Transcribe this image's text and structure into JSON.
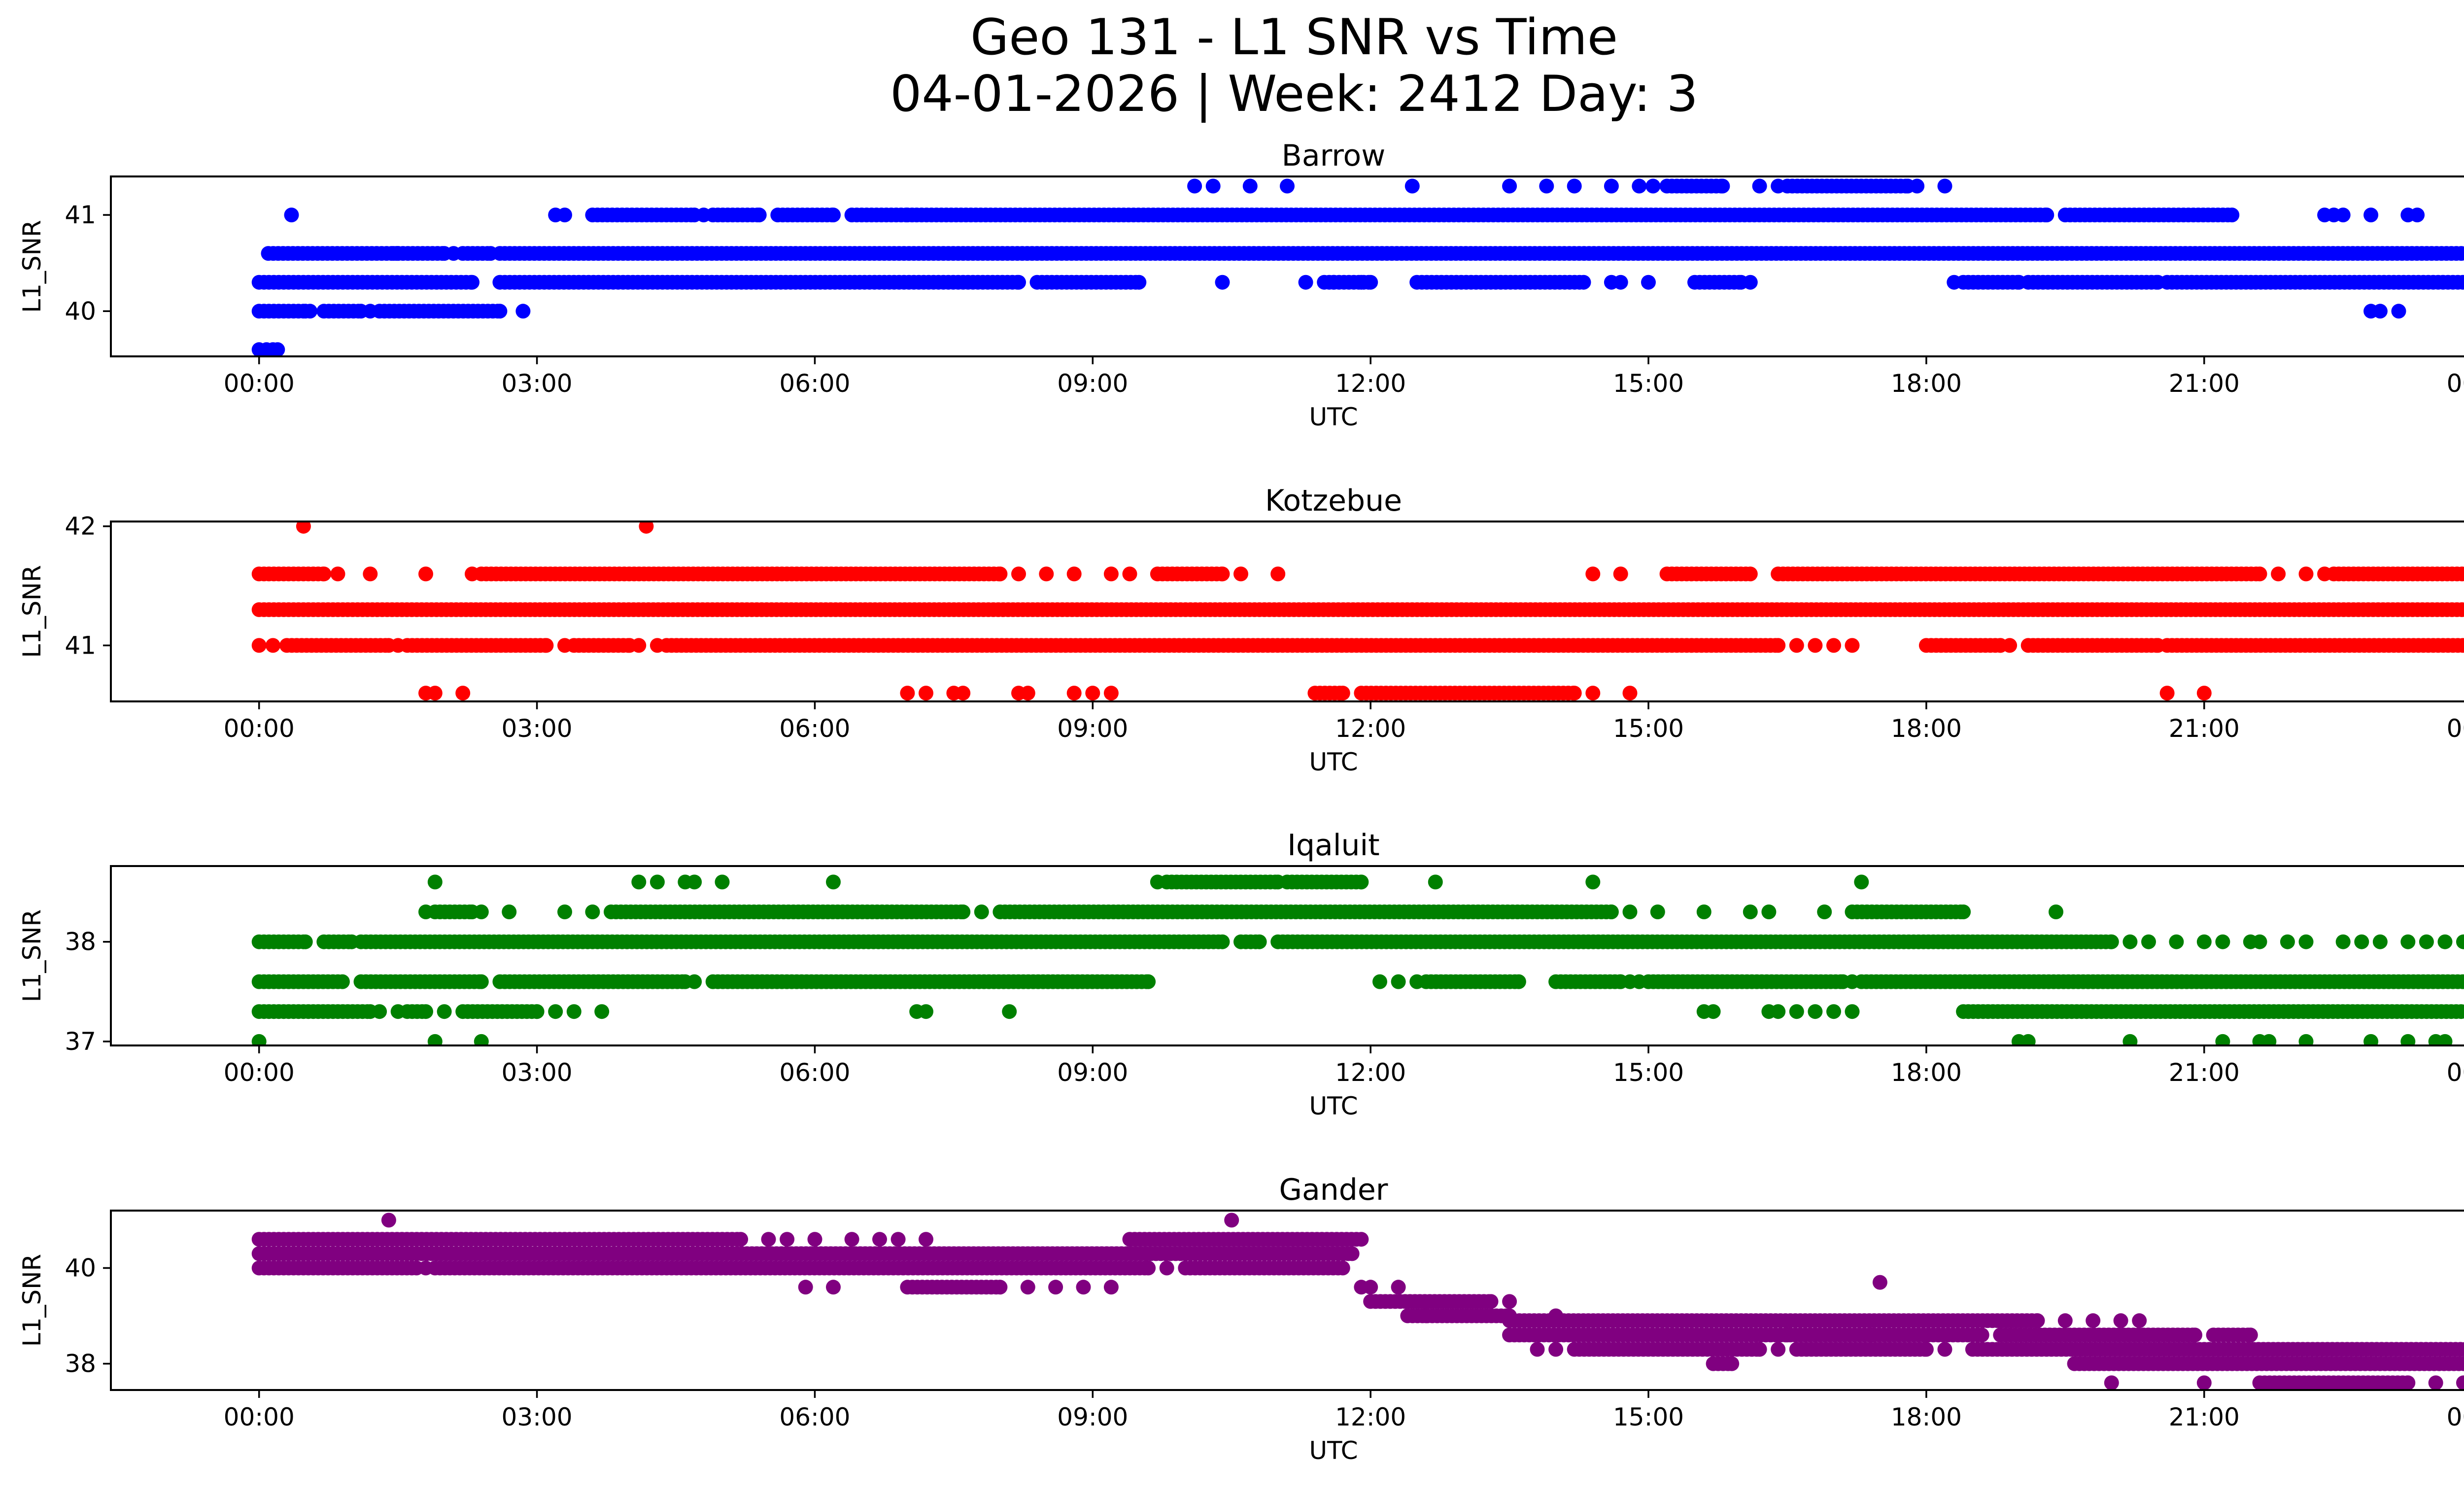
{
  "figure": {
    "title_line1": "Geo 131 - L1 SNR vs Time",
    "title_line2": "04-01-2026 | Week: 2412 Day: 3"
  },
  "chart_data": [
    {
      "type": "scatter",
      "title": "Barrow",
      "color": "#0000ff",
      "xlabel": "UTC",
      "ylabel": "L1_SNR",
      "xlim": [
        -1.6,
        24.8
      ],
      "ylim": [
        39.53,
        41.4
      ],
      "xticks": [
        0,
        3,
        6,
        9,
        12,
        15,
        18,
        21,
        24
      ],
      "xtick_labels": [
        "00:00",
        "03:00",
        "06:00",
        "09:00",
        "12:00",
        "15:00",
        "18:00",
        "21:00",
        "00:00"
      ],
      "yticks": [
        40,
        41
      ],
      "ytick_labels": [
        "40",
        "41"
      ],
      "series": [
        {
          "name": "40.6 dB",
          "y": 40.6,
          "segments": [
            [
              0.1,
              1.5
            ],
            [
              1.5,
              2.0
            ],
            [
              2.2,
              2.5
            ],
            [
              2.6,
              24.0
            ]
          ],
          "points": [
            1.45,
            2.1
          ]
        },
        {
          "name": "40.3 dB",
          "y": 40.3,
          "segments": [
            [
              0.0,
              2.3
            ],
            [
              2.6,
              8.2
            ],
            [
              8.4,
              9.5
            ],
            [
              11.5,
              12.0
            ],
            [
              12.5,
              14.3
            ],
            [
              15.5,
              16.0
            ],
            [
              18.4,
              19.0
            ],
            [
              19.1,
              20.5
            ],
            [
              20.6,
              24.0
            ]
          ],
          "points": [
            10.4,
            11.3,
            11.6,
            11.9,
            14.6,
            14.7,
            15.0,
            16.1,
            18.3
          ]
        },
        {
          "name": "41.0 dB",
          "y": 41.0,
          "segments": [
            [
              3.6,
              4.7
            ],
            [
              4.9,
              5.4
            ],
            [
              5.6,
              6.2
            ],
            [
              6.4,
              7.0
            ],
            [
              7.1,
              19.3
            ],
            [
              19.5,
              21.3
            ]
          ],
          "points": [
            0.35,
            3.2,
            3.3,
            4.8,
            7.05,
            22.3,
            22.4,
            22.5,
            22.8,
            23.2,
            23.3
          ]
        },
        {
          "name": "41.3 dB",
          "y": 41.3,
          "segments": [
            [
              15.2,
              15.8
            ],
            [
              16.5,
              17.8
            ]
          ],
          "points": [
            10.1,
            10.3,
            10.7,
            11.1,
            12.45,
            13.5,
            13.9,
            14.2,
            14.6,
            14.9,
            15.05,
            16.2,
            16.4,
            17.9,
            18.2
          ]
        },
        {
          "name": "40.0 dB",
          "y": 40.0,
          "segments": [
            [
              0.0,
              0.5
            ],
            [
              0.7,
              1.1
            ],
            [
              1.3,
              2.6
            ]
          ],
          "points": [
            0.55,
            1.2,
            2.85,
            22.8,
            22.9,
            23.1,
            24.0
          ]
        },
        {
          "name": "39.6 dB",
          "y": 39.6,
          "segments": [],
          "points": [
            0.0,
            0.08,
            0.15,
            0.2
          ]
        }
      ]
    },
    {
      "type": "scatter",
      "title": "Kotzebue",
      "color": "#ff0000",
      "xlabel": "UTC",
      "ylabel": "L1_SNR",
      "xlim": [
        -1.6,
        24.8
      ],
      "ylim": [
        40.53,
        42.04
      ],
      "xticks": [
        0,
        3,
        6,
        9,
        12,
        15,
        18,
        21,
        24
      ],
      "xtick_labels": [
        "00:00",
        "03:00",
        "06:00",
        "09:00",
        "12:00",
        "15:00",
        "18:00",
        "21:00",
        "00:00"
      ],
      "yticks": [
        41,
        42
      ],
      "ytick_labels": [
        "41",
        "42"
      ],
      "series": [
        {
          "name": "41.3 dB",
          "y": 41.3,
          "segments": [
            [
              0.0,
              24.0
            ]
          ],
          "points": []
        },
        {
          "name": "41.6 dB",
          "y": 41.6,
          "segments": [
            [
              0.0,
              0.7
            ],
            [
              2.4,
              8.0
            ],
            [
              9.7,
              10.4
            ],
            [
              15.2,
              16.1
            ],
            [
              16.4,
              21.6
            ],
            [
              22.4,
              24.0
            ]
          ],
          "points": [
            0.85,
            1.2,
            1.8,
            2.3,
            8.2,
            8.5,
            8.8,
            9.2,
            9.4,
            10.6,
            11.0,
            14.4,
            14.7,
            21.8,
            22.1,
            22.3
          ]
        },
        {
          "name": "41.0 dB",
          "y": 41.0,
          "segments": [
            [
              0.3,
              1.4
            ],
            [
              1.6,
              3.1
            ],
            [
              3.4,
              4.0
            ],
            [
              4.4,
              16.4
            ],
            [
              18.0,
              18.8
            ],
            [
              19.1,
              20.5
            ],
            [
              20.6,
              24.0
            ]
          ],
          "points": [
            0.0,
            0.15,
            1.5,
            3.3,
            4.1,
            4.3,
            16.6,
            16.8,
            17.0,
            17.2,
            18.9
          ]
        },
        {
          "name": "40.6 dB",
          "y": 40.6,
          "segments": [
            [
              11.4,
              11.7
            ],
            [
              11.9,
              14.2
            ]
          ],
          "points": [
            1.8,
            1.9,
            2.2,
            7.0,
            7.2,
            7.5,
            7.6,
            8.2,
            8.3,
            8.8,
            9.0,
            9.2,
            14.4,
            14.8,
            20.6,
            21.0
          ]
        },
        {
          "name": "42.0 dB",
          "y": 42.0,
          "segments": [],
          "points": [
            0.48,
            4.18
          ]
        }
      ]
    },
    {
      "type": "scatter",
      "title": "Iqaluit",
      "color": "#008000",
      "xlabel": "UTC",
      "ylabel": "L1_SNR",
      "xlim": [
        -1.6,
        24.8
      ],
      "ylim": [
        36.96,
        38.76
      ],
      "xticks": [
        0,
        3,
        6,
        9,
        12,
        15,
        18,
        21,
        24
      ],
      "xtick_labels": [
        "00:00",
        "03:00",
        "06:00",
        "09:00",
        "12:00",
        "15:00",
        "18:00",
        "21:00",
        "00:00"
      ],
      "yticks": [
        37,
        38
      ],
      "ytick_labels": [
        "37",
        "38"
      ],
      "series": [
        {
          "name": "38.0 dB",
          "y": 38.0,
          "segments": [
            [
              0.0,
              0.5
            ],
            [
              0.7,
              1.0
            ],
            [
              1.1,
              10.4
            ],
            [
              10.6,
              10.8
            ],
            [
              11.0,
              20.0
            ]
          ],
          "points": [
            20.2,
            20.4,
            20.7,
            21.0,
            21.2,
            21.5,
            21.6,
            21.9,
            22.1,
            22.5,
            22.7,
            22.9,
            23.2,
            23.4,
            23.6,
            23.8
          ]
        },
        {
          "name": "37.6 dB",
          "y": 37.6,
          "segments": [
            [
              0.0,
              0.9
            ],
            [
              1.1,
              2.4
            ],
            [
              2.6,
              4.6
            ],
            [
              4.9,
              9.6
            ],
            [
              12.6,
              13.6
            ],
            [
              14.0,
              14.7
            ],
            [
              15.0,
              17.1
            ],
            [
              17.3,
              24.0
            ]
          ],
          "points": [
            12.1,
            12.3,
            12.5,
            14.8,
            14.9,
            17.2,
            4.7
          ]
        },
        {
          "name": "37.3 dB",
          "y": 37.3,
          "segments": [
            [
              0.0,
              1.2
            ],
            [
              1.6,
              1.8
            ],
            [
              2.2,
              3.0
            ],
            [
              18.4,
              24.0
            ]
          ],
          "points": [
            1.3,
            1.5,
            2.0,
            3.2,
            3.4,
            3.7,
            7.1,
            7.2,
            8.1,
            15.6,
            15.7,
            16.3,
            16.4,
            16.6,
            16.8,
            17.0,
            17.2
          ]
        },
        {
          "name": "38.3 dB",
          "y": 38.3,
          "segments": [
            [
              1.9,
              2.3
            ],
            [
              3.8,
              7.6
            ],
            [
              8.0,
              14.6
            ],
            [
              17.2,
              18.4
            ]
          ],
          "points": [
            1.8,
            2.4,
            2.7,
            3.3,
            3.6,
            7.8,
            14.8,
            15.1,
            15.6,
            16.1,
            16.3,
            16.9,
            19.4
          ]
        },
        {
          "name": "38.6 dB",
          "y": 38.6,
          "segments": [
            [
              9.8,
              11.0
            ],
            [
              11.1,
              11.9
            ]
          ],
          "points": [
            1.9,
            4.1,
            4.3,
            4.6,
            4.7,
            5.0,
            6.2,
            9.7,
            12.7,
            14.4,
            17.3
          ]
        },
        {
          "name": "37.0 dB",
          "y": 37.0,
          "segments": [],
          "points": [
            0.0,
            1.9,
            2.4,
            19.0,
            19.1,
            20.2,
            21.2,
            21.6,
            21.7,
            22.1,
            22.8,
            23.2,
            23.5,
            23.6
          ]
        }
      ]
    },
    {
      "type": "scatter",
      "title": "Gander",
      "color": "#800080",
      "xlabel": "UTC",
      "ylabel": "L1_SNR",
      "xlim": [
        -1.6,
        24.8
      ],
      "ylim": [
        37.45,
        41.2
      ],
      "xticks": [
        0,
        3,
        6,
        9,
        12,
        15,
        18,
        21,
        24
      ],
      "xtick_labels": [
        "00:00",
        "03:00",
        "06:00",
        "09:00",
        "12:00",
        "15:00",
        "18:00",
        "21:00",
        "00:00"
      ],
      "yticks": [
        38,
        40
      ],
      "ytick_labels": [
        "38",
        "40"
      ],
      "series": [
        {
          "name": "40.6 dB",
          "y": 40.6,
          "segments": [
            [
              0.0,
              5.2
            ],
            [
              9.4,
              11.9
            ]
          ],
          "points": [
            5.5,
            5.7,
            6.0,
            6.4,
            6.7,
            6.9,
            7.2
          ]
        },
        {
          "name": "40.3 dB",
          "y": 40.3,
          "segments": [
            [
              0.0,
              11.8
            ]
          ],
          "points": []
        },
        {
          "name": "40.0 dB",
          "y": 40.0,
          "segments": [
            [
              0.0,
              1.7
            ],
            [
              1.9,
              9.6
            ],
            [
              10.0,
              11.7
            ]
          ],
          "points": [
            1.8,
            9.8
          ]
        },
        {
          "name": "39.6 dB",
          "y": 39.6,
          "segments": [
            [
              7.0,
              8.0
            ]
          ],
          "points": [
            5.9,
            6.2,
            8.3,
            8.6,
            8.9,
            9.2,
            11.9,
            12.0,
            12.3
          ]
        },
        {
          "name": "39.3 dB",
          "y": 39.3,
          "segments": [
            [
              12.0,
              13.3
            ]
          ],
          "points": [
            13.5
          ]
        },
        {
          "name": "39.0 dB",
          "y": 39.0,
          "segments": [
            [
              12.4,
              13.5
            ]
          ],
          "points": [
            12.6,
            14.0
          ]
        },
        {
          "name": "38.9 dB",
          "y": 38.9,
          "segments": [
            [
              13.5,
              19.2
            ]
          ],
          "points": [
            19.5,
            19.8,
            20.1,
            20.3
          ]
        },
        {
          "name": "38.6 dB",
          "y": 38.6,
          "segments": [
            [
              13.5,
              18.6
            ],
            [
              18.8,
              20.9
            ],
            [
              21.1,
              21.5
            ]
          ],
          "points": [
            16.5,
            16.8,
            17.4,
            17.6
          ]
        },
        {
          "name": "38.3 dB",
          "y": 38.3,
          "segments": [
            [
              14.2,
              16.2
            ],
            [
              16.6,
              18.0
            ],
            [
              18.5,
              24.0
            ]
          ],
          "points": [
            13.8,
            14.0,
            16.4,
            18.2
          ]
        },
        {
          "name": "38.0 dB",
          "y": 38.0,
          "segments": [
            [
              15.7,
              15.9
            ],
            [
              19.6,
              24.0
            ]
          ],
          "points": []
        },
        {
          "name": "37.6 dB",
          "y": 37.6,
          "segments": [
            [
              21.6,
              23.2
            ],
            [
              23.8,
              24.0
            ]
          ],
          "points": [
            20.0,
            21.0,
            23.5
          ]
        },
        {
          "name": "39.7 dB",
          "y": 39.7,
          "segments": [],
          "points": [
            17.5
          ]
        },
        {
          "name": "41.0 dB",
          "y": 41.0,
          "segments": [],
          "points": [
            1.4,
            10.5
          ]
        }
      ]
    }
  ]
}
